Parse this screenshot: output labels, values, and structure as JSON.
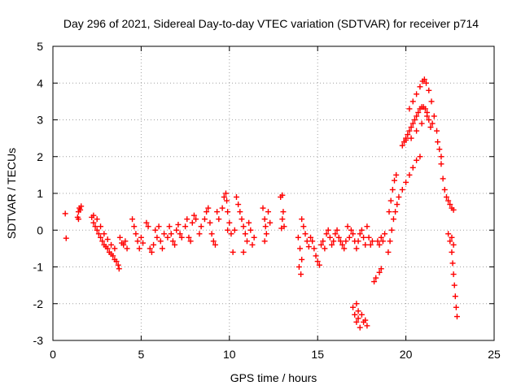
{
  "chart_data": {
    "type": "scatter",
    "title": "Day 296 of 2021, Sidereal Day-to-day VTEC variation (SDTVAR) for receiver p714",
    "xlabel": "GPS time / hours",
    "ylabel": "SDTVAR / TECUs",
    "xlim": [
      0,
      25
    ],
    "ylim": [
      -3,
      5
    ],
    "xticks": [
      0,
      5,
      10,
      15,
      20,
      25
    ],
    "yticks": [
      -3,
      -2,
      -1,
      0,
      1,
      2,
      3,
      4,
      5
    ],
    "xtick_labels": [
      "0",
      "5",
      "10",
      "15",
      "20",
      "25"
    ],
    "ytick_labels": [
      "-3",
      "-2",
      "-1",
      "0",
      "1",
      "2",
      "3",
      "4",
      "5"
    ],
    "grid": true,
    "marker": "+",
    "color": "#ff0000",
    "series": [
      {
        "name": "SDTVAR",
        "points": [
          [
            0.7,
            0.45
          ],
          [
            0.75,
            -0.22
          ],
          [
            1.4,
            0.35
          ],
          [
            1.45,
            0.5
          ],
          [
            1.5,
            0.6
          ],
          [
            1.55,
            0.55
          ],
          [
            1.6,
            0.65
          ],
          [
            1.45,
            0.3
          ],
          [
            2.2,
            0.35
          ],
          [
            2.3,
            0.2
          ],
          [
            2.4,
            0.1
          ],
          [
            2.5,
            0.0
          ],
          [
            2.6,
            -0.1
          ],
          [
            2.7,
            -0.2
          ],
          [
            2.8,
            -0.3
          ],
          [
            2.9,
            -0.4
          ],
          [
            3.0,
            -0.45
          ],
          [
            3.1,
            -0.5
          ],
          [
            3.2,
            -0.6
          ],
          [
            3.3,
            -0.65
          ],
          [
            3.4,
            -0.7
          ],
          [
            3.5,
            -0.8
          ],
          [
            3.6,
            -0.85
          ],
          [
            3.7,
            -0.95
          ],
          [
            3.75,
            -1.05
          ],
          [
            2.3,
            0.4
          ],
          [
            2.5,
            0.3
          ],
          [
            2.7,
            0.1
          ],
          [
            2.9,
            -0.1
          ],
          [
            3.1,
            -0.25
          ],
          [
            3.3,
            -0.4
          ],
          [
            3.5,
            -0.5
          ],
          [
            3.8,
            -0.2
          ],
          [
            3.9,
            -0.35
          ],
          [
            4.0,
            -0.4
          ],
          [
            4.1,
            -0.3
          ],
          [
            4.2,
            -0.5
          ],
          [
            4.5,
            0.3
          ],
          [
            4.6,
            0.1
          ],
          [
            4.7,
            -0.1
          ],
          [
            4.8,
            -0.3
          ],
          [
            4.9,
            -0.5
          ],
          [
            5.0,
            -0.2
          ],
          [
            5.1,
            -0.35
          ],
          [
            5.3,
            0.2
          ],
          [
            5.4,
            0.1
          ],
          [
            5.5,
            -0.5
          ],
          [
            5.6,
            -0.6
          ],
          [
            5.7,
            -0.4
          ],
          [
            5.8,
            0.0
          ],
          [
            5.9,
            -0.2
          ],
          [
            6.0,
            0.1
          ],
          [
            6.1,
            -0.3
          ],
          [
            6.2,
            -0.5
          ],
          [
            6.3,
            -0.1
          ],
          [
            6.5,
            -0.2
          ],
          [
            6.6,
            0.1
          ],
          [
            6.7,
            -0.1
          ],
          [
            6.8,
            -0.3
          ],
          [
            6.9,
            -0.4
          ],
          [
            7.0,
            0.0
          ],
          [
            7.1,
            0.15
          ],
          [
            7.2,
            -0.1
          ],
          [
            7.3,
            -0.2
          ],
          [
            7.5,
            0.1
          ],
          [
            7.6,
            0.3
          ],
          [
            7.7,
            -0.2
          ],
          [
            7.8,
            -0.3
          ],
          [
            7.9,
            0.2
          ],
          [
            8.0,
            0.4
          ],
          [
            8.1,
            0.3
          ],
          [
            8.3,
            -0.1
          ],
          [
            8.4,
            0.1
          ],
          [
            8.6,
            0.3
          ],
          [
            8.7,
            0.5
          ],
          [
            8.8,
            0.6
          ],
          [
            8.9,
            0.2
          ],
          [
            9.0,
            -0.1
          ],
          [
            9.1,
            -0.3
          ],
          [
            9.2,
            -0.4
          ],
          [
            9.3,
            0.5
          ],
          [
            9.4,
            0.3
          ],
          [
            9.6,
            0.6
          ],
          [
            9.7,
            0.9
          ],
          [
            9.8,
            1.0
          ],
          [
            9.85,
            0.8
          ],
          [
            9.9,
            0.5
          ],
          [
            10.0,
            0.2
          ],
          [
            10.1,
            -0.1
          ],
          [
            9.9,
            0.0
          ],
          [
            10.2,
            -0.6
          ],
          [
            10.3,
            0.0
          ],
          [
            10.4,
            0.9
          ],
          [
            10.5,
            0.7
          ],
          [
            10.6,
            0.5
          ],
          [
            10.7,
            0.3
          ],
          [
            10.8,
            0.1
          ],
          [
            10.9,
            -0.1
          ],
          [
            11.0,
            -0.3
          ],
          [
            10.8,
            -0.6
          ],
          [
            11.1,
            0.2
          ],
          [
            11.2,
            0.0
          ],
          [
            11.3,
            -0.4
          ],
          [
            11.4,
            -0.2
          ],
          [
            11.9,
            0.6
          ],
          [
            12.0,
            0.3
          ],
          [
            12.05,
            0.1
          ],
          [
            12.1,
            -0.1
          ],
          [
            12.2,
            0.5
          ],
          [
            12.3,
            0.2
          ],
          [
            12.0,
            -0.3
          ],
          [
            12.9,
            0.9
          ],
          [
            13.0,
            0.95
          ],
          [
            13.05,
            0.5
          ],
          [
            13.0,
            0.3
          ],
          [
            13.1,
            0.1
          ],
          [
            12.95,
            0.05
          ],
          [
            13.9,
            -0.2
          ],
          [
            14.0,
            -0.5
          ],
          [
            14.1,
            -0.8
          ],
          [
            13.95,
            -1.0
          ],
          [
            14.05,
            -1.2
          ],
          [
            14.1,
            0.3
          ],
          [
            14.2,
            0.1
          ],
          [
            14.3,
            -0.1
          ],
          [
            14.4,
            -0.3
          ],
          [
            14.5,
            -0.45
          ],
          [
            14.6,
            -0.2
          ],
          [
            14.7,
            -0.3
          ],
          [
            14.8,
            -0.5
          ],
          [
            14.9,
            -0.7
          ],
          [
            15.0,
            -0.85
          ],
          [
            15.1,
            -0.95
          ],
          [
            15.2,
            -0.4
          ],
          [
            15.3,
            -0.3
          ],
          [
            15.4,
            -0.5
          ],
          [
            15.5,
            -0.1
          ],
          [
            15.6,
            0.0
          ],
          [
            15.7,
            -0.2
          ],
          [
            15.8,
            -0.4
          ],
          [
            15.9,
            -0.3
          ],
          [
            16.0,
            -0.1
          ],
          [
            16.1,
            0.0
          ],
          [
            16.2,
            -0.2
          ],
          [
            16.3,
            -0.3
          ],
          [
            16.4,
            -0.4
          ],
          [
            16.5,
            -0.5
          ],
          [
            16.6,
            -0.3
          ],
          [
            16.7,
            0.1
          ],
          [
            16.8,
            -0.2
          ],
          [
            16.9,
            0.0
          ],
          [
            17.0,
            -0.1
          ],
          [
            17.1,
            -0.3
          ],
          [
            17.2,
            -0.5
          ],
          [
            17.3,
            -0.3
          ],
          [
            17.4,
            -0.1
          ],
          [
            17.5,
            0.0
          ],
          [
            17.6,
            -0.2
          ],
          [
            17.7,
            -0.4
          ],
          [
            17.8,
            0.1
          ],
          [
            17.9,
            -0.2
          ],
          [
            18.0,
            -0.4
          ],
          [
            18.1,
            -0.3
          ],
          [
            17.0,
            -2.1
          ],
          [
            17.1,
            -2.3
          ],
          [
            17.2,
            -2.5
          ],
          [
            17.3,
            -2.4
          ],
          [
            17.4,
            -2.65
          ],
          [
            17.5,
            -2.3
          ],
          [
            17.6,
            -2.5
          ],
          [
            17.7,
            -2.45
          ],
          [
            17.8,
            -2.6
          ],
          [
            17.2,
            -2.0
          ],
          [
            17.3,
            -2.2
          ],
          [
            18.2,
            -1.4
          ],
          [
            18.3,
            -1.3
          ],
          [
            18.5,
            -1.15
          ],
          [
            18.6,
            -1.05
          ],
          [
            18.4,
            -0.3
          ],
          [
            18.5,
            -0.4
          ],
          [
            18.6,
            -0.2
          ],
          [
            18.7,
            -0.3
          ],
          [
            18.8,
            -0.1
          ],
          [
            19.0,
            -0.6
          ],
          [
            19.1,
            -0.3
          ],
          [
            19.2,
            0.0
          ],
          [
            19.3,
            0.3
          ],
          [
            19.4,
            0.5
          ],
          [
            19.5,
            0.7
          ],
          [
            19.6,
            0.9
          ],
          [
            19.8,
            1.1
          ],
          [
            20.0,
            1.3
          ],
          [
            20.2,
            1.5
          ],
          [
            20.4,
            1.7
          ],
          [
            20.6,
            1.9
          ],
          [
            20.8,
            2.0
          ],
          [
            19.05,
            0.5
          ],
          [
            19.15,
            0.8
          ],
          [
            19.25,
            1.1
          ],
          [
            19.35,
            1.35
          ],
          [
            19.45,
            1.5
          ],
          [
            19.8,
            2.3
          ],
          [
            19.9,
            2.4
          ],
          [
            20.0,
            2.5
          ],
          [
            20.1,
            2.6
          ],
          [
            20.2,
            2.7
          ],
          [
            20.3,
            2.8
          ],
          [
            20.4,
            2.9
          ],
          [
            20.5,
            3.0
          ],
          [
            20.6,
            3.1
          ],
          [
            20.7,
            3.2
          ],
          [
            20.8,
            3.3
          ],
          [
            20.9,
            3.35
          ],
          [
            21.0,
            3.35
          ],
          [
            21.1,
            3.3
          ],
          [
            21.2,
            3.2
          ],
          [
            21.3,
            3.0
          ],
          [
            21.4,
            2.8
          ],
          [
            20.2,
            3.3
          ],
          [
            20.4,
            3.5
          ],
          [
            20.6,
            3.7
          ],
          [
            20.8,
            3.9
          ],
          [
            20.95,
            4.05
          ],
          [
            21.05,
            4.1
          ],
          [
            21.15,
            4.0
          ],
          [
            21.3,
            3.8
          ],
          [
            21.45,
            3.5
          ],
          [
            21.6,
            3.1
          ],
          [
            21.75,
            2.7
          ],
          [
            21.9,
            2.2
          ],
          [
            22.0,
            1.8
          ],
          [
            22.1,
            1.4
          ],
          [
            22.2,
            1.1
          ],
          [
            22.3,
            0.9
          ],
          [
            22.4,
            0.8
          ],
          [
            22.5,
            0.7
          ],
          [
            22.6,
            0.6
          ],
          [
            22.7,
            0.55
          ],
          [
            20.0,
            2.45
          ],
          [
            20.3,
            2.5
          ],
          [
            20.6,
            2.7
          ],
          [
            20.9,
            2.9
          ],
          [
            21.2,
            3.1
          ],
          [
            21.5,
            2.9
          ],
          [
            21.8,
            2.4
          ],
          [
            22.0,
            2.0
          ],
          [
            22.4,
            -0.1
          ],
          [
            22.5,
            -0.3
          ],
          [
            22.6,
            -0.6
          ],
          [
            22.65,
            -0.9
          ],
          [
            22.7,
            -1.2
          ],
          [
            22.75,
            -1.5
          ],
          [
            22.8,
            -1.8
          ],
          [
            22.85,
            -2.1
          ],
          [
            22.9,
            -2.35
          ],
          [
            22.6,
            -0.2
          ],
          [
            22.7,
            -0.4
          ]
        ]
      }
    ]
  }
}
